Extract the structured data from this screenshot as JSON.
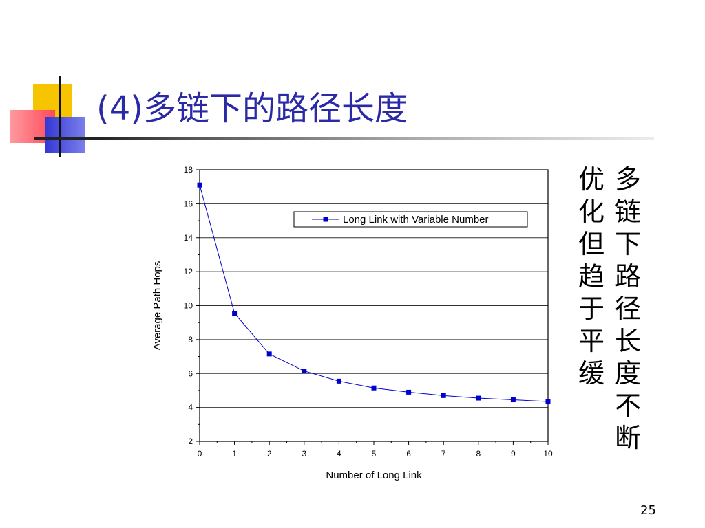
{
  "slide": {
    "title": "(4)多链下的路径长度",
    "note_col1": "多链下路径长度不断",
    "note_col2": "优化但趋于平缓",
    "page_number": "25"
  },
  "chart_data": {
    "type": "line",
    "title": "",
    "xlabel": "Number of Long Link",
    "ylabel": "Average Path Hops",
    "xlim": [
      0,
      10
    ],
    "ylim": [
      2,
      18
    ],
    "xticks": [
      0,
      1,
      2,
      3,
      4,
      5,
      6,
      7,
      8,
      9,
      10
    ],
    "yticks": [
      2,
      4,
      6,
      8,
      10,
      12,
      14,
      16,
      18
    ],
    "grid": "horizontal",
    "legend_position": "top-right",
    "series": [
      {
        "name": "Long Link with Variable Number",
        "color": "#0000cc",
        "marker": "square",
        "x": [
          0,
          1,
          2,
          3,
          4,
          5,
          6,
          7,
          8,
          9,
          10
        ],
        "values": [
          17.1,
          9.55,
          7.15,
          6.15,
          5.55,
          5.15,
          4.9,
          4.7,
          4.55,
          4.45,
          4.35
        ]
      }
    ]
  }
}
